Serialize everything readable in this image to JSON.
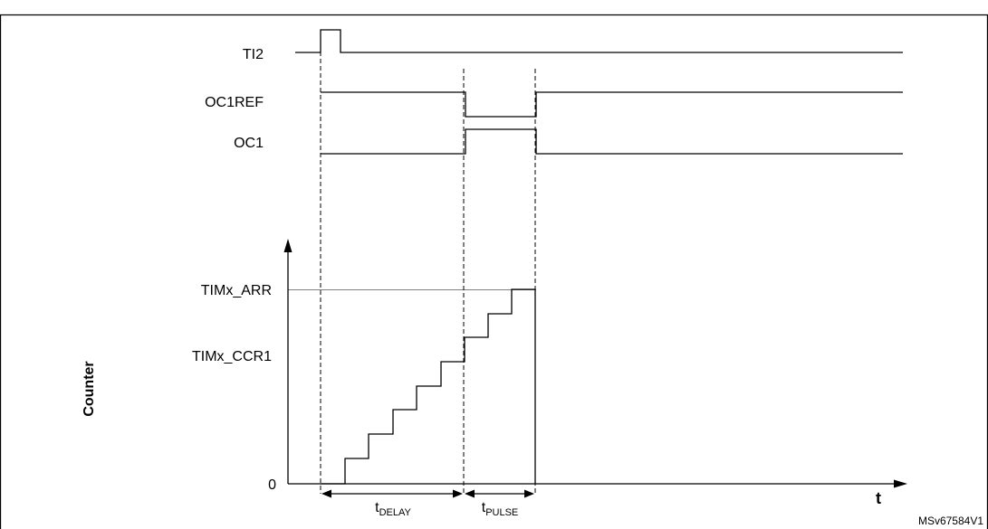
{
  "signals": {
    "ti2": "TI2",
    "oc1ref": "OC1REF",
    "oc1": "OC1"
  },
  "axis": {
    "y_title": "Counter",
    "arr": "TIMx_ARR",
    "ccr1": "TIMx_CCR1",
    "zero": "0",
    "t": "t"
  },
  "timing": {
    "delay_t": "t",
    "delay_sub": "DELAY",
    "pulse_t": "t",
    "pulse_sub": "PULSE"
  },
  "footer": {
    "ref": "MSv67584V1"
  }
}
